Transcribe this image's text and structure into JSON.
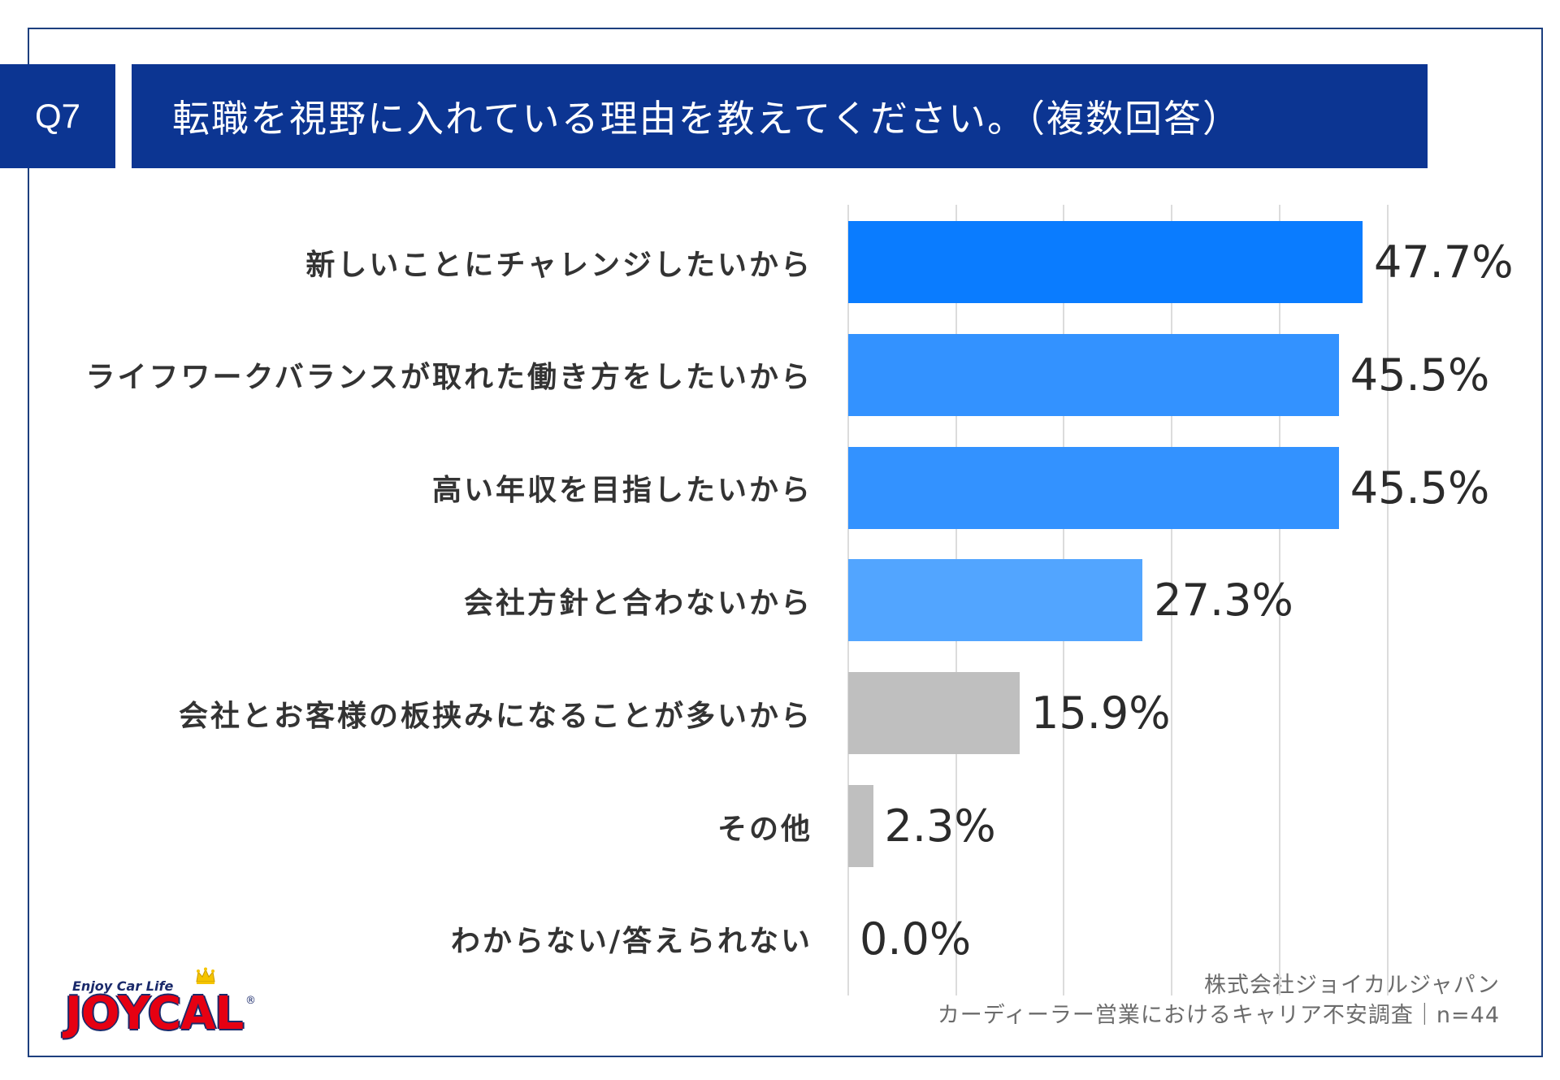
{
  "header": {
    "question_number": "Q7"
  },
  "chart_data": {
    "type": "bar",
    "orientation": "horizontal",
    "title": "転職を視野に入れている理由を教えてください。（複数回答）",
    "categories": [
      "新しいことにチャレンジしたいから",
      "ライフワークバランスが取れた働き方をしたいから",
      "高い年収を目指したいから",
      "会社方針と合わないから",
      "会社とお客様の板挟みになることが多いから",
      "その他",
      "わからない/答えられない"
    ],
    "values": [
      47.7,
      45.5,
      45.5,
      27.3,
      15.9,
      2.3,
      0.0
    ],
    "value_labels": [
      "47.7%",
      "45.5%",
      "45.5%",
      "27.3%",
      "15.9%",
      "2.3%",
      "0.0%"
    ],
    "unit": "%",
    "xlim": [
      0,
      50
    ],
    "grid": true,
    "grid_step": 10,
    "xlabel": "",
    "ylabel": "",
    "bar_colors": [
      "#0a7cff",
      "#3392ff",
      "#3392ff",
      "#52a5ff",
      "#bfbfbf",
      "#bfbfbf",
      "#bfbfbf"
    ]
  },
  "footer": {
    "company": "株式会社ジョイカルジャパン",
    "survey": "カーディーラー営業におけるキャリア不安調査｜n=44"
  },
  "logo": {
    "tagline": "Enjoy Car Life",
    "wordmark": "JOYCAL",
    "registered_mark": "®",
    "crown_icon": "crown-icon"
  },
  "colors": {
    "header_bg": "#0c3592",
    "frame_border": "#1d3f7e",
    "gridline": "#dcdcdc",
    "logo_red": "#e60012",
    "logo_navy": "#1b2a6b",
    "crown_yellow": "#f5c400"
  }
}
